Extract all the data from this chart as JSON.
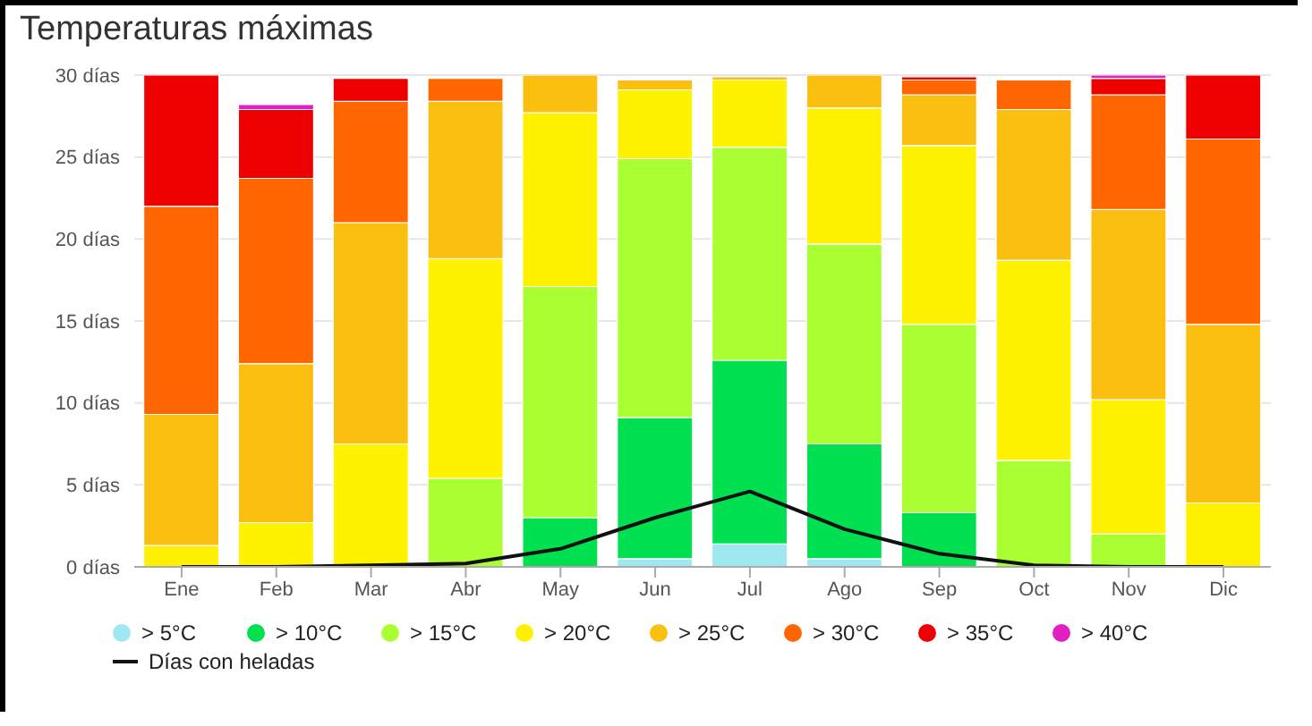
{
  "chart_data": {
    "type": "bar",
    "title": "Temperaturas máximas",
    "stacked": true,
    "categories": [
      "Ene",
      "Feb",
      "Mar",
      "Abr",
      "May",
      "Jun",
      "Jul",
      "Ago",
      "Sep",
      "Oct",
      "Nov",
      "Dic"
    ],
    "series": [
      {
        "name": "> 5°C",
        "color": "#a0e8f0",
        "values": [
          0,
          0,
          0,
          0,
          0,
          0.5,
          1.4,
          0.5,
          0,
          0,
          0,
          0
        ]
      },
      {
        "name": "> 10°C",
        "color": "#00e050",
        "values": [
          0,
          0,
          0,
          null,
          3.0,
          8.6,
          11.2,
          7.0,
          3.3,
          null,
          0,
          0
        ]
      },
      {
        "name": "> 15°C",
        "color": "#aaff33",
        "values": [
          0,
          0,
          null,
          5.4,
          14.1,
          15.8,
          13.0,
          12.2,
          11.5,
          6.5,
          2.0,
          0
        ]
      },
      {
        "name": "> 20°C",
        "color": "#fff200",
        "values": [
          1.3,
          2.7,
          7.5,
          13.4,
          10.6,
          4.2,
          4.1,
          8.3,
          10.9,
          12.2,
          8.2,
          3.9
        ]
      },
      {
        "name": "> 25°C",
        "color": "#fbbf0f",
        "values": [
          8.0,
          9.7,
          13.5,
          9.6,
          2.3,
          0.6,
          0.2,
          2.0,
          3.1,
          9.2,
          11.6,
          10.9
        ]
      },
      {
        "name": "> 30°C",
        "color": "#ff6600",
        "values": [
          12.7,
          11.3,
          7.4,
          1.4,
          0,
          0,
          0,
          0,
          0.9,
          1.8,
          7.0,
          11.3
        ]
      },
      {
        "name": "> 35°C",
        "color": "#ee0000",
        "values": [
          8.0,
          4.2,
          1.4,
          0,
          0,
          0,
          0,
          0,
          0.2,
          0,
          1.0,
          3.9
        ]
      },
      {
        "name": "> 40°C",
        "color": "#e020c0",
        "values": [
          0,
          0.3,
          0,
          0,
          0,
          0,
          0,
          0,
          0,
          0,
          0.2,
          0
        ]
      },
      {
        "name": "Días con heladas",
        "type": "line",
        "color": "#111111",
        "marker": "none",
        "values": [
          0,
          0,
          0.1,
          0.2,
          1.1,
          3.0,
          4.6,
          2.3,
          0.8,
          0.1,
          0,
          0
        ]
      }
    ],
    "ylim": [
      0,
      30
    ],
    "yticks": [
      {
        "value": 0,
        "label": "0 días"
      },
      {
        "value": 5,
        "label": "5 días"
      },
      {
        "value": 10,
        "label": "10 días"
      },
      {
        "value": 15,
        "label": "15 días"
      },
      {
        "value": 20,
        "label": "20 días"
      },
      {
        "value": 25,
        "label": "25 días"
      },
      {
        "value": 30,
        "label": "30 días"
      }
    ],
    "grid": "y",
    "legend": "bottom"
  }
}
